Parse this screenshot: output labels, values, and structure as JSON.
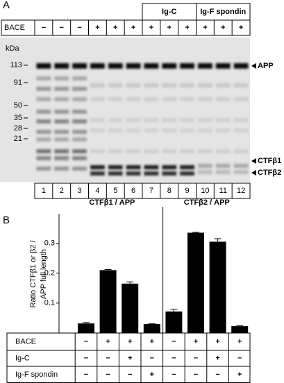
{
  "panel_a": {
    "label": "A",
    "groups": [
      "Ig-C",
      "Ig-F spondin"
    ],
    "bace_label": "BACE",
    "bace": [
      "−",
      "−",
      "−",
      "+",
      "+",
      "+",
      "+",
      "+",
      "+",
      "+",
      "+",
      "+"
    ],
    "kda": "kDa",
    "markers": [
      "113",
      "91",
      "50",
      "35",
      "28",
      "21"
    ],
    "bands": [
      "APP",
      "CTFβ1",
      "CTFβ2"
    ],
    "lanes": [
      "1",
      "2",
      "3",
      "4",
      "5",
      "6",
      "7",
      "8",
      "9",
      "10",
      "11",
      "12"
    ]
  },
  "chart_data": {
    "type": "bar",
    "label": "B",
    "ylabel": [
      "Ratio CTFβ1 or β2 /",
      "APP full length"
    ],
    "group_titles": [
      "CTFβ1 / APP",
      "CTFβ2 / APP"
    ],
    "categories": [
      null,
      null,
      null,
      null,
      null,
      null,
      null,
      null
    ],
    "values": [
      0.032,
      0.21,
      0.165,
      0.03,
      0.072,
      0.335,
      0.305,
      0.023
    ],
    "errors": [
      0.003,
      0.002,
      0.006,
      0.001,
      0.008,
      0.002,
      0.01,
      0.002
    ],
    "color": "#000000",
    "ylim": [
      0,
      0.38
    ],
    "yticks": [
      0.1,
      0.2,
      0.3
    ]
  },
  "table": {
    "rows": [
      {
        "label": "BACE",
        "cells": [
          "−",
          "+",
          "+",
          "+",
          "−",
          "+",
          "+",
          "+"
        ]
      },
      {
        "label": "Ig-C",
        "cells": [
          "−",
          "−",
          "+",
          "−",
          "−",
          "−",
          "+",
          "−"
        ]
      },
      {
        "label": "Ig-F spondin",
        "cells": [
          "−",
          "−",
          "−",
          "+",
          "−",
          "−",
          "−",
          "+"
        ]
      }
    ]
  }
}
